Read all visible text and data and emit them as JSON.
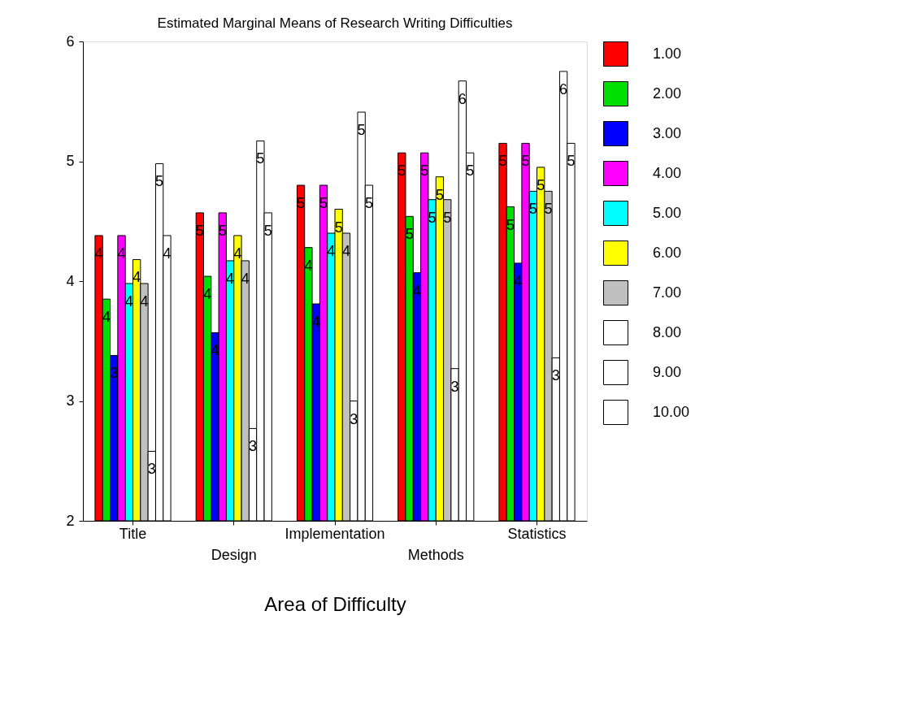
{
  "chart_data": {
    "type": "bar",
    "title": "Estimated Marginal Means of Research Writing Difficulties",
    "xlabel": "Area of Difficulty",
    "categories": [
      "Title",
      "Design",
      "Implementation",
      "Methods",
      "Statistics"
    ],
    "ylim": [
      2,
      6
    ],
    "yticks": [
      2,
      3,
      4,
      5,
      6
    ],
    "grid": false,
    "legend": "right",
    "series": [
      {
        "name": "1.00",
        "color": "#ff0000",
        "values": [
          4.38,
          4.57,
          4.8,
          5.07,
          5.15
        ],
        "value_labels": [
          "4",
          "5",
          "5",
          "5",
          "5"
        ]
      },
      {
        "name": "2.00",
        "color": "#00e000",
        "values": [
          3.85,
          4.04,
          4.28,
          4.54,
          4.62
        ],
        "value_labels": [
          "4",
          "4",
          "4",
          "5",
          "5"
        ]
      },
      {
        "name": "3.00",
        "color": "#0000ff",
        "values": [
          3.38,
          3.57,
          3.81,
          4.07,
          4.15
        ],
        "value_labels": [
          "3",
          "4",
          "4",
          "4",
          "4"
        ]
      },
      {
        "name": "4.00",
        "color": "#ff00ff",
        "values": [
          4.38,
          4.57,
          4.8,
          5.07,
          5.15
        ],
        "value_labels": [
          "4",
          "5",
          "5",
          "5",
          "5"
        ]
      },
      {
        "name": "5.00",
        "color": "#00ffff",
        "values": [
          3.98,
          4.17,
          4.4,
          4.68,
          4.75
        ],
        "value_labels": [
          "4",
          "4",
          "4",
          "5",
          "5"
        ]
      },
      {
        "name": "6.00",
        "color": "#ffff00",
        "values": [
          4.18,
          4.38,
          4.6,
          4.87,
          4.95
        ],
        "value_labels": [
          "4",
          "4",
          "5",
          "5",
          "5"
        ]
      },
      {
        "name": "7.00",
        "color": "#c0c0c0",
        "values": [
          3.98,
          4.17,
          4.4,
          4.68,
          4.75
        ],
        "value_labels": [
          "4",
          "4",
          "4",
          "5",
          "5"
        ]
      },
      {
        "name": "8.00",
        "color": "#ffffff",
        "values": [
          2.58,
          2.77,
          3.0,
          3.27,
          3.36
        ],
        "value_labels": [
          "3",
          "3",
          "3",
          "3",
          "3"
        ]
      },
      {
        "name": "9.00",
        "color": "#ffffff",
        "values": [
          4.98,
          5.17,
          5.41,
          5.67,
          5.75
        ],
        "value_labels": [
          "5",
          "5",
          "5",
          "6",
          "6"
        ]
      },
      {
        "name": "10.00",
        "color": "#ffffff",
        "values": [
          4.38,
          4.57,
          4.8,
          5.07,
          5.15
        ],
        "value_labels": [
          "4",
          "5",
          "5",
          "5",
          "5"
        ]
      }
    ]
  }
}
